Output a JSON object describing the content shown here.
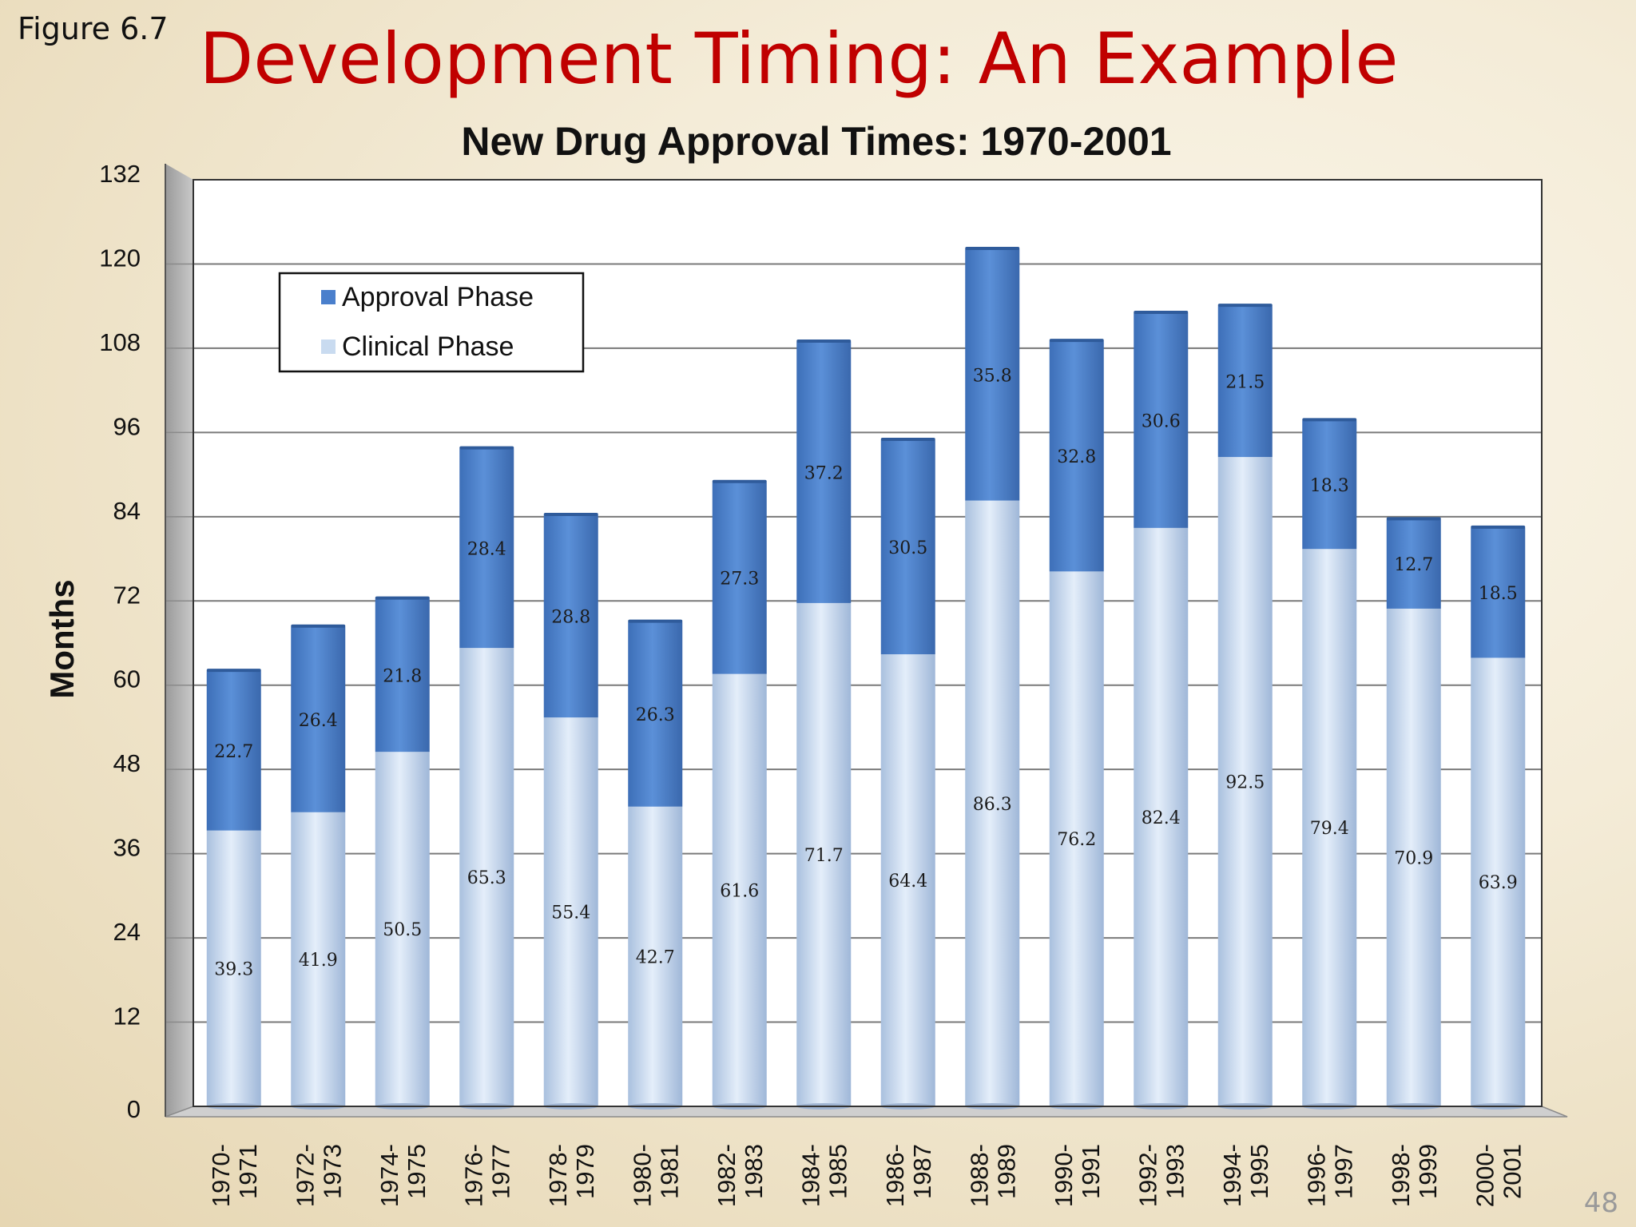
{
  "slide": {
    "figure_label": "Figure 6.7",
    "title": "Development Timing: An Example",
    "page_number": "48"
  },
  "colors": {
    "approval": "#4a7fcc",
    "clinical": "#c9dbf0",
    "title_red": "#c00000"
  },
  "chart_data": {
    "type": "bar",
    "stacked": true,
    "title": "New Drug Approval Times: 1970-2001",
    "ylabel": "Months",
    "xlabel": "",
    "ylim": [
      0,
      132
    ],
    "yticks": [
      0,
      12,
      24,
      36,
      48,
      60,
      72,
      84,
      96,
      108,
      120,
      132
    ],
    "grid": true,
    "legend_position": "top-left",
    "categories": [
      [
        "1970-",
        "1971"
      ],
      [
        "1972-",
        "1973"
      ],
      [
        "1974-",
        "1975"
      ],
      [
        "1976-",
        "1977"
      ],
      [
        "1978-",
        "1979"
      ],
      [
        "1980-",
        "1981"
      ],
      [
        "1982-",
        "1983"
      ],
      [
        "1984-",
        "1985"
      ],
      [
        "1986-",
        "1987"
      ],
      [
        "1988-",
        "1989"
      ],
      [
        "1990-",
        "1991"
      ],
      [
        "1992-",
        "1993"
      ],
      [
        "1994-",
        "1995"
      ],
      [
        "1996-",
        "1997"
      ],
      [
        "1998-",
        "1999"
      ],
      [
        "2000-",
        "2001"
      ]
    ],
    "series": [
      {
        "name": "Clinical Phase",
        "values": [
          39.3,
          41.9,
          50.5,
          65.3,
          55.4,
          42.7,
          61.6,
          71.7,
          64.4,
          86.3,
          76.2,
          82.4,
          92.5,
          79.4,
          70.9,
          63.9
        ]
      },
      {
        "name": "Approval Phase",
        "values": [
          22.7,
          26.4,
          21.8,
          28.4,
          28.8,
          26.3,
          27.3,
          37.2,
          30.5,
          35.8,
          32.8,
          30.6,
          21.5,
          18.3,
          12.7,
          18.5
        ]
      }
    ],
    "legend": [
      "Approval Phase",
      "Clinical Phase"
    ]
  }
}
